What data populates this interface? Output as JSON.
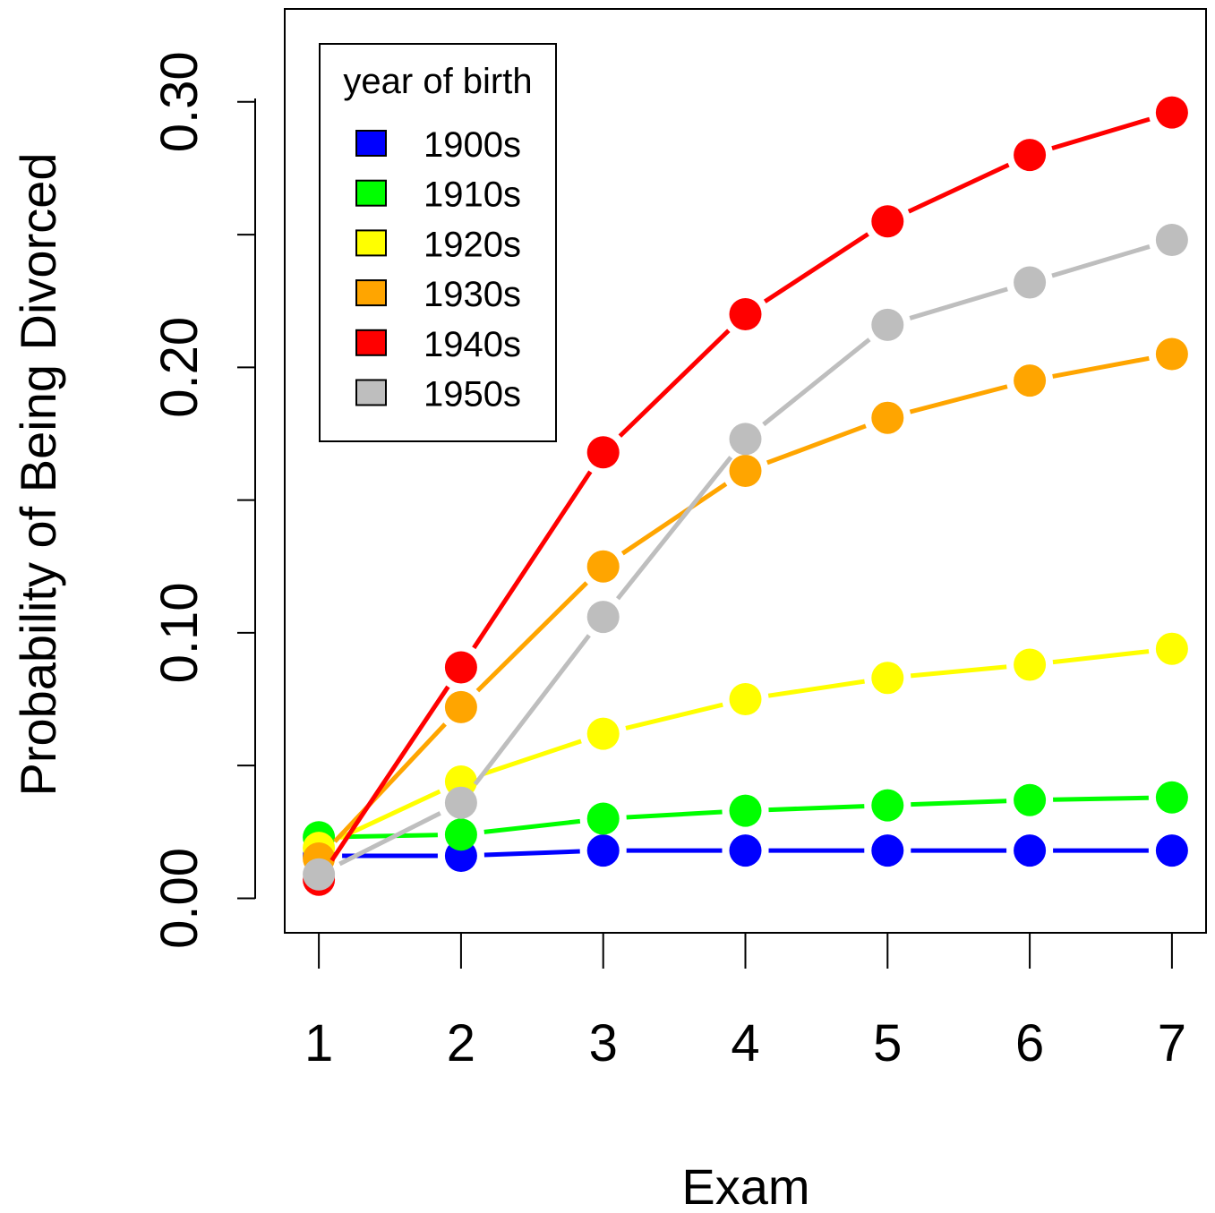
{
  "chart_data": {
    "type": "line",
    "title": "",
    "xlabel": "Exam",
    "ylabel": "Probability of Being Divorced",
    "x": [
      1,
      2,
      3,
      4,
      5,
      6,
      7
    ],
    "x_tick_labels": [
      "1",
      "2",
      "3",
      "4",
      "5",
      "6",
      "7"
    ],
    "xlim": [
      0.76,
      7.24
    ],
    "ylim": [
      -0.013,
      0.335
    ],
    "y_ticks": [
      0.0,
      0.05,
      0.1,
      0.15,
      0.2,
      0.25,
      0.3
    ],
    "y_tick_labels": [
      "0.00",
      "0.10",
      "0.20",
      "0.30"
    ],
    "y_labeled_values": [
      0.0,
      0.1,
      0.2,
      0.3
    ],
    "grid": false,
    "line_style": "dashed",
    "marker": "circle",
    "legend": {
      "title": "year of birth",
      "placement": "top-left",
      "marker": "square"
    },
    "series": [
      {
        "name": "1900s",
        "color": "#0000ff",
        "values": [
          0.016,
          0.016,
          0.018,
          0.018,
          0.018,
          0.018,
          0.018
        ]
      },
      {
        "name": "1910s",
        "color": "#00ff00",
        "values": [
          0.023,
          0.024,
          0.03,
          0.033,
          0.035,
          0.037,
          0.038
        ]
      },
      {
        "name": "1920s",
        "color": "#ffff00",
        "values": [
          0.019,
          0.044,
          0.062,
          0.075,
          0.083,
          0.088,
          0.094
        ]
      },
      {
        "name": "1930s",
        "color": "#ffa500",
        "values": [
          0.015,
          0.072,
          0.125,
          0.161,
          0.181,
          0.195,
          0.205
        ]
      },
      {
        "name": "1940s",
        "color": "#ff0000",
        "values": [
          0.007,
          0.087,
          0.168,
          0.22,
          0.255,
          0.28,
          0.296
        ]
      },
      {
        "name": "1950s",
        "color": "#bebebe",
        "values": [
          0.009,
          0.036,
          0.106,
          0.173,
          0.216,
          0.232,
          0.248
        ]
      }
    ]
  }
}
